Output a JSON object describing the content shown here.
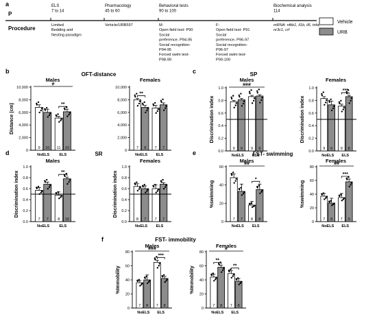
{
  "timeline": {
    "panel_label": "a",
    "row_labels": {
      "p": "P",
      "procedure": "Procedure"
    },
    "stages": [
      {
        "title": "ELS\n7 to 14",
        "procedure": "Limited\nBedding and\nNesting paradigm"
      },
      {
        "title": "Pharmacology\n45 to 60",
        "procedure": "Vehicle/URB597"
      },
      {
        "title": "Behavioral tests\n90 to 100",
        "procedure": "M:\nOpen field test- P90\nSocial\npreference- P94-95\nSocial recognition-\nP94-95\nForced swim test-\nP98-99"
      },
      {
        "title": "",
        "procedure": "F:\nOpen field test- P91\nSocial\npreference- P96-97\nSocial recognition-\nP96-97\nForced swim test-\nP99-100"
      },
      {
        "title": "Biochemical analysis\n114",
        "procedure": "mRNA: nfkb1, il1b, il6, tnfa,\nnr3c1, crf"
      }
    ]
  },
  "legend": [
    {
      "label": "Vehicle",
      "color": "#ffffff"
    },
    {
      "label": "URB",
      "color": "#8c8c8c"
    }
  ],
  "chart_data": [
    {
      "id": "b",
      "panel_label": "b",
      "row_title": "OFT-distance",
      "type": "bar",
      "charts": [
        {
          "title": "Males",
          "ylabel": "Distance (cm)",
          "ylim": [
            0,
            10000
          ],
          "yticks": [
            "0",
            "2,000",
            "4,000",
            "6,000",
            "8,000",
            "10,000"
          ],
          "categories": [
            "NoELS",
            "ELS"
          ],
          "ref_line": null,
          "series": [
            {
              "name": "Vehicle",
              "values": [
                6800,
                5100
              ],
              "errors": [
                400,
                250
              ]
            },
            {
              "name": "URB",
              "values": [
                6000,
                6100
              ],
              "errors": [
                500,
                400
              ]
            }
          ],
          "n": [
            [
              "9",
              "10"
            ],
            [
              "11",
              "10"
            ]
          ],
          "annotations": [
            {
              "text": "#",
              "type": "main"
            },
            {
              "text": "**",
              "type": "els"
            }
          ]
        },
        {
          "title": "Females",
          "ylabel": "",
          "ylim": [
            0,
            10000
          ],
          "yticks": [
            "0",
            "2,000",
            "4,000",
            "6,000",
            "8,000",
            "10,000"
          ],
          "categories": [
            "NoELS",
            "ELS"
          ],
          "ref_line": null,
          "series": [
            {
              "name": "Vehicle",
              "values": [
                8000,
                6700
              ],
              "errors": [
                200,
                400
              ]
            },
            {
              "name": "URB",
              "values": [
                6800,
                7200
              ],
              "errors": [
                300,
                300
              ]
            }
          ],
          "n": [
            [
              "7",
              "8"
            ],
            [
              "7",
              "7"
            ]
          ],
          "annotations": [
            {
              "text": "**",
              "type": "noels"
            }
          ]
        }
      ]
    },
    {
      "id": "c",
      "panel_label": "c",
      "row_title": "SP",
      "type": "bar",
      "charts": [
        {
          "title": "Males",
          "ylabel": "Discrimination index",
          "ylim": [
            0,
            1.0
          ],
          "yticks": [
            "0.0",
            "0.2",
            "0.4",
            "0.6",
            "0.8",
            "1.0"
          ],
          "categories": [
            "NoELS",
            "ELS"
          ],
          "ref_line": 0.5,
          "series": [
            {
              "name": "Vehicle",
              "values": [
                0.78,
                0.86
              ],
              "errors": [
                0.02,
                0.02
              ]
            },
            {
              "name": "URB",
              "values": [
                0.81,
                0.87
              ],
              "errors": [
                0.02,
                0.02
              ]
            }
          ],
          "n": [
            [
              "9",
              "9"
            ],
            [
              "9",
              "9"
            ]
          ],
          "annotations": [
            {
              "text": "###",
              "type": "main"
            }
          ]
        },
        {
          "title": "Females",
          "ylabel": "Discrimination index",
          "ylim": [
            0,
            1.0
          ],
          "yticks": [
            "0.0",
            "0.2",
            "0.4",
            "0.6",
            "0.8",
            "1.0"
          ],
          "categories": [
            "NoELS",
            "ELS"
          ],
          "ref_line": 0.5,
          "series": [
            {
              "name": "Vehicle",
              "values": [
                0.83,
                0.71
              ],
              "errors": [
                0.03,
                0.03
              ]
            },
            {
              "name": "URB",
              "values": [
                0.73,
                0.86
              ],
              "errors": [
                0.06,
                0.02
              ]
            }
          ],
          "n": [
            [
              "9",
              "6"
            ],
            [
              "9",
              "8"
            ]
          ],
          "annotations": [
            {
              "text": "***",
              "type": "els"
            }
          ]
        }
      ]
    },
    {
      "id": "d",
      "panel_label": "d",
      "row_title": "SR",
      "type": "bar",
      "charts": [
        {
          "title": "Males",
          "ylabel": "Discrimination index",
          "ylim": [
            0,
            1.0
          ],
          "yticks": [
            "0.0",
            "0.2",
            "0.4",
            "0.6",
            "0.8",
            "1.0"
          ],
          "categories": [
            "NoELS",
            "ELS"
          ],
          "ref_line": 0.5,
          "series": [
            {
              "name": "Vehicle",
              "values": [
                0.57,
                0.48
              ],
              "errors": [
                0.05,
                0.06
              ]
            },
            {
              "name": "URB",
              "values": [
                0.68,
                0.78
              ],
              "errors": [
                0.04,
                0.03
              ]
            }
          ],
          "n": [
            [
              "7",
              "7"
            ],
            [
              "8",
              "10"
            ]
          ],
          "annotations": [
            {
              "text": "**",
              "type": "els"
            }
          ]
        },
        {
          "title": "Females",
          "ylabel": "Discrimination index",
          "ylim": [
            0,
            1.0
          ],
          "yticks": [
            "0.0",
            "0.2",
            "0.4",
            "0.6",
            "0.8",
            "1.0"
          ],
          "categories": [
            "NoELS",
            "ELS"
          ],
          "ref_line": 0.5,
          "series": [
            {
              "name": "Vehicle",
              "values": [
                0.64,
                0.6
              ],
              "errors": [
                0.05,
                0.07
              ]
            },
            {
              "name": "URB",
              "values": [
                0.6,
                0.68
              ],
              "errors": [
                0.05,
                0.03
              ]
            }
          ],
          "n": [
            [
              "8",
              "7"
            ],
            [
              "7",
              "7"
            ]
          ],
          "annotations": []
        }
      ]
    },
    {
      "id": "e",
      "panel_label": "e",
      "row_title": "FST- swimming",
      "type": "bar",
      "charts": [
        {
          "title": "Males",
          "ylabel": "%swimming",
          "ylim": [
            0,
            60
          ],
          "yticks": [
            "0",
            "20",
            "40",
            "60"
          ],
          "categories": [
            "NoELS",
            "ELS"
          ],
          "ref_line": null,
          "series": [
            {
              "name": "Vehicle",
              "values": [
                48,
                18
              ],
              "errors": [
                4,
                4
              ]
            },
            {
              "name": "URB",
              "values": [
                33,
                35
              ],
              "errors": [
                8,
                6
              ]
            }
          ],
          "n": [
            [
              "7",
              "7"
            ],
            [
              "8",
              "8"
            ]
          ],
          "annotations": [
            {
              "text": "##",
              "type": "main"
            },
            {
              "text": "*",
              "type": "els"
            }
          ]
        },
        {
          "title": "Females",
          "ylabel": "%swimming",
          "ylim": [
            0,
            80
          ],
          "yticks": [
            "0",
            "20",
            "40",
            "60",
            "80"
          ],
          "categories": [
            "NoELS",
            "ELS"
          ],
          "ref_line": null,
          "series": [
            {
              "name": "Vehicle",
              "values": [
                37,
                35
              ],
              "errors": [
                4,
                6
              ]
            },
            {
              "name": "URB",
              "values": [
                27,
                58
              ],
              "errors": [
                7,
                4
              ]
            }
          ],
          "n": [
            [
              "7",
              "8"
            ],
            [
              "7",
              "9"
            ]
          ],
          "annotations": [
            {
              "text": "##",
              "type": "main"
            },
            {
              "text": "***",
              "type": "els"
            }
          ]
        }
      ]
    },
    {
      "id": "f",
      "panel_label": "f",
      "row_title": "FST- immobility",
      "type": "bar",
      "charts": [
        {
          "title": "Males",
          "ylabel": "%Immobility",
          "ylim": [
            0,
            80
          ],
          "yticks": [
            "0",
            "20",
            "40",
            "60",
            "80"
          ],
          "categories": [
            "NoELS",
            "ELS"
          ],
          "ref_line": null,
          "series": [
            {
              "name": "Vehicle",
              "values": [
                36,
                65
              ],
              "errors": [
                3,
                3
              ]
            },
            {
              "name": "URB",
              "values": [
                40,
                42
              ],
              "errors": [
                7,
                3
              ]
            }
          ],
          "n": [
            [
              "7",
              "8"
            ],
            [
              "7",
              "8"
            ]
          ],
          "annotations": [
            {
              "text": "###",
              "type": "main"
            },
            {
              "text": "***",
              "type": "els"
            }
          ]
        },
        {
          "title": "Females",
          "ylabel": "%Immobility",
          "ylim": [
            0,
            80
          ],
          "yticks": [
            "0",
            "20",
            "40",
            "60",
            "80"
          ],
          "categories": [
            "NoELS",
            "ELS"
          ],
          "ref_line": null,
          "series": [
            {
              "name": "Vehicle",
              "values": [
                44,
                49
              ],
              "errors": [
                4,
                4
              ]
            },
            {
              "name": "URB",
              "values": [
                58,
                38
              ],
              "errors": [
                3,
                4
              ]
            }
          ],
          "n": [
            [
              "7",
              "8"
            ],
            [
              "7",
              "8"
            ]
          ],
          "annotations": [
            {
              "text": "#",
              "type": "main"
            },
            {
              "text": "**",
              "type": "noels"
            },
            {
              "text": "**",
              "type": "els"
            }
          ]
        }
      ]
    }
  ]
}
